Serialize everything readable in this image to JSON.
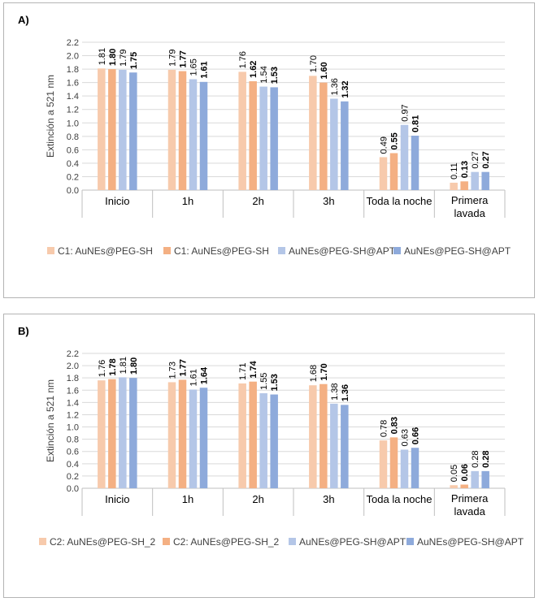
{
  "colors": {
    "series1": "#f7caac",
    "series2": "#f4b083",
    "series3": "#b4c6e7",
    "series4": "#8eaadb",
    "grid": "#d9d9d9",
    "axis": "#bfbfbf"
  },
  "chart_data": [
    {
      "panel_label": "A)",
      "type": "bar",
      "ylabel": "Extinción a 521 nm",
      "ylim": [
        0,
        2.2
      ],
      "yticks": [
        "0.0",
        "0.2",
        "0.4",
        "0.6",
        "0.8",
        "1.0",
        "1.2",
        "1.4",
        "1.6",
        "1.8",
        "2.0",
        "2.2"
      ],
      "categories": [
        "Inicio",
        "1h",
        "2h",
        "3h",
        "Toda la noche",
        "Primera lavada"
      ],
      "series": [
        {
          "name": "C1: AuNEs@PEG-SH",
          "values": [
            1.81,
            1.79,
            1.76,
            1.7,
            0.49,
            0.11
          ],
          "labels": [
            "1.81",
            "1.79",
            "1.76",
            "1.70",
            "0.49",
            "0.11"
          ]
        },
        {
          "name": "C1: AuNEs@PEG-SH",
          "values": [
            1.8,
            1.77,
            1.62,
            1.6,
            0.55,
            0.13
          ],
          "labels": [
            "1.80",
            "1.77",
            "1.62",
            "1.60",
            "0.55",
            "0.13"
          ]
        },
        {
          "name": "AuNEs@PEG-SH@APT",
          "values": [
            1.79,
            1.65,
            1.54,
            1.36,
            0.97,
            0.27
          ],
          "labels": [
            "1.79",
            "1.65",
            "1.54",
            "1.36",
            "0.97",
            "0.27"
          ]
        },
        {
          "name": "AuNEs@PEG-SH@APT",
          "values": [
            1.75,
            1.61,
            1.53,
            1.32,
            0.81,
            0.27
          ],
          "labels": [
            "1.75",
            "1.61",
            "1.53",
            "1.32",
            "0.81",
            "0.27"
          ]
        }
      ],
      "legend": "bottom",
      "grid": true
    },
    {
      "panel_label": "B)",
      "type": "bar",
      "ylabel": "Extinción a 521 nm",
      "ylim": [
        0,
        2.2
      ],
      "yticks": [
        "0.0",
        "0.2",
        "0.4",
        "0.6",
        "0.8",
        "1.0",
        "1.2",
        "1.4",
        "1.6",
        "1.8",
        "2.0",
        "2.2"
      ],
      "categories": [
        "Inicio",
        "1h",
        "2h",
        "3h",
        "Toda la noche",
        "Primera lavada"
      ],
      "series": [
        {
          "name": "C2: AuNEs@PEG-SH_2",
          "values": [
            1.76,
            1.73,
            1.71,
            1.68,
            0.78,
            0.05
          ],
          "labels": [
            "1.76",
            "1.73",
            "1.71",
            "1.68",
            "0.78",
            "0.05"
          ]
        },
        {
          "name": "C2: AuNEs@PEG-SH_2",
          "values": [
            1.78,
            1.77,
            1.74,
            1.7,
            0.83,
            0.06
          ],
          "labels": [
            "1.78",
            "1.77",
            "1.74",
            "1.70",
            "0.83",
            "0.06"
          ]
        },
        {
          "name": "AuNEs@PEG-SH@APT",
          "values": [
            1.81,
            1.61,
            1.55,
            1.38,
            0.63,
            0.28
          ],
          "labels": [
            "1.81",
            "1.61",
            "1.55",
            "1.38",
            "0.63",
            "0.28"
          ]
        },
        {
          "name": "AuNEs@PEG-SH@APT",
          "values": [
            1.8,
            1.64,
            1.53,
            1.36,
            0.66,
            0.28
          ],
          "labels": [
            "1.80",
            "1.64",
            "1.53",
            "1.36",
            "0.66",
            "0.28"
          ]
        }
      ],
      "legend": "bottom",
      "grid": true
    }
  ]
}
